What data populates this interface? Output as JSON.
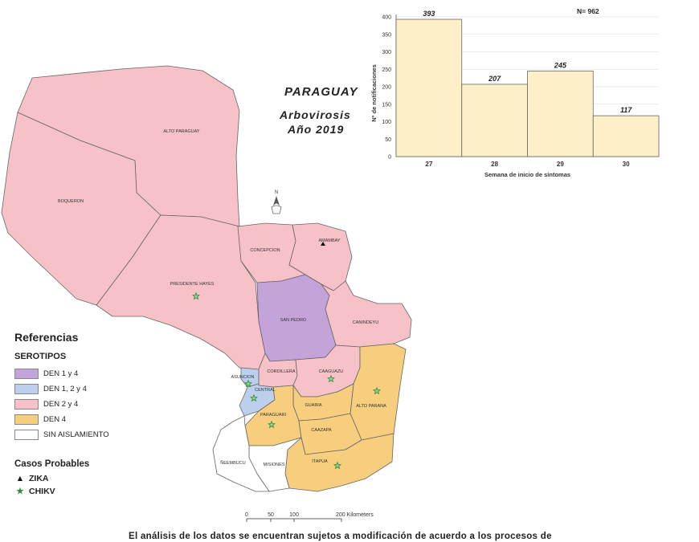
{
  "title": {
    "country": "PARAGUAY",
    "subtitle": "Arbovirosis",
    "year": "Año 2019"
  },
  "departments": [
    {
      "id": "alto-paraguay",
      "name": "ALTO PARAGUAY",
      "serotype": "DEN 2 y 4"
    },
    {
      "id": "boqueron",
      "name": "BOQUERON",
      "serotype": "DEN 2 y 4"
    },
    {
      "id": "presidente-hayes",
      "name": "PRESIDENTE HAYES",
      "serotype": "DEN 2 y 4"
    },
    {
      "id": "concepcion",
      "name": "CONCEPCION",
      "serotype": "DEN 2 y 4"
    },
    {
      "id": "amambay",
      "name": "AMAMBAY",
      "serotype": "DEN 2 y 4"
    },
    {
      "id": "san-pedro",
      "name": "SAN PEDRO",
      "serotype": "DEN 1 y 4"
    },
    {
      "id": "canindeyu",
      "name": "CANINDEYU",
      "serotype": "DEN 2 y 4"
    },
    {
      "id": "cordillera",
      "name": "CORDILLERA",
      "serotype": "DEN 2 y 4"
    },
    {
      "id": "caaguazu",
      "name": "CAAGUAZU",
      "serotype": "DEN 2 y 4"
    },
    {
      "id": "asuncion",
      "name": "ASUNCION",
      "serotype": "DEN 1, 2 y 4"
    },
    {
      "id": "central",
      "name": "CENTRAL",
      "serotype": "DEN 1, 2 y 4"
    },
    {
      "id": "alto-parana",
      "name": "ALTO PARANA",
      "serotype": "DEN 4"
    },
    {
      "id": "guaira",
      "name": "GUAIRA",
      "serotype": "DEN 4"
    },
    {
      "id": "paraguari",
      "name": "PARAGUARI",
      "serotype": "DEN 4"
    },
    {
      "id": "caazapa",
      "name": "CAAZAPA",
      "serotype": "DEN 4"
    },
    {
      "id": "itapua",
      "name": "ITAPUA",
      "serotype": "DEN 4"
    },
    {
      "id": "misiones",
      "name": "MISIONES",
      "serotype": "SIN AISLAMIENTO"
    },
    {
      "id": "neembucu",
      "name": "ÑEEMBUCU",
      "serotype": "SIN AISLAMIENTO"
    }
  ],
  "legend": {
    "heading": "Referencias",
    "serotypes_heading": "SEROTIPOS",
    "items": [
      {
        "label": "DEN 1 y 4",
        "color": "#c4a3d9"
      },
      {
        "label": "DEN 1, 2 y 4",
        "color": "#bcd0ee"
      },
      {
        "label": "DEN 2 y 4",
        "color": "#f6c2c8"
      },
      {
        "label": "DEN 4",
        "color": "#f7cd7e"
      },
      {
        "label": "SIN AISLAMIENTO",
        "color": "#ffffff"
      }
    ]
  },
  "cases": {
    "heading": "Casos Probables",
    "items": [
      {
        "symbol": "▲",
        "label": "ZIKA",
        "color": "#111111"
      },
      {
        "symbol": "★",
        "label": "CHIKV",
        "color": "#2e8b3a"
      }
    ]
  },
  "markers": {
    "zika": [
      "AMAMBAY"
    ],
    "chikv": [
      "PRESIDENTE HAYES",
      "ASUNCION",
      "CENTRAL",
      "CAAGUAZU",
      "ALTO PARANA",
      "PARAGUARI",
      "ITAPUA"
    ]
  },
  "north_arrow": "N",
  "scale_bar": {
    "ticks": [
      "0",
      "50",
      "100",
      "200 Kilometers"
    ]
  },
  "chart_data": {
    "type": "bar",
    "categories": [
      "27",
      "28",
      "29",
      "30"
    ],
    "values": [
      393,
      207,
      245,
      117
    ],
    "xlabel": "Semana de inicio de síntomas",
    "ylabel": "Nº de notificaciones",
    "ylim": [
      0,
      400
    ],
    "yticks": [
      0,
      50,
      100,
      150,
      200,
      250,
      300,
      350,
      400
    ],
    "annotation": "N= 962",
    "bar_color": "#fdf0c8",
    "grid": true
  },
  "footer_text": "El análisis de los datos se encuentran sujetos a modificación de acuerdo a los procesos de"
}
